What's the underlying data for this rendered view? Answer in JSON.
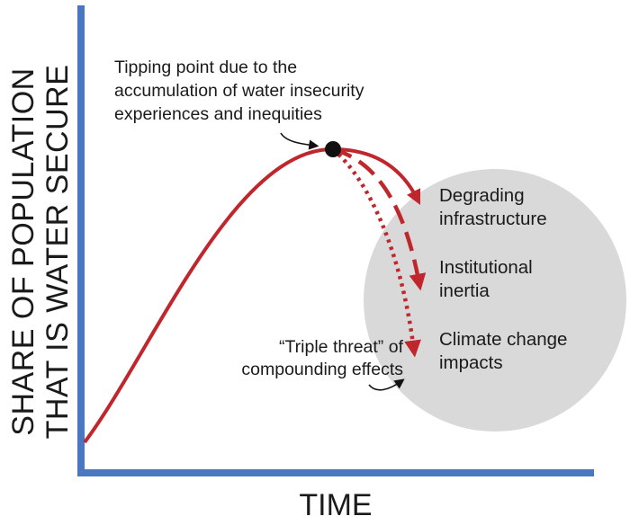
{
  "diagram": {
    "y_axis_label_line1": "SHARE OF POPULATION",
    "y_axis_label_line2": "THAT IS WATER SECURE",
    "x_axis_label": "TIME",
    "tipping_point_annotation": [
      "Tipping point due to the",
      "accumulation of water insecurity",
      "experiences and inequities"
    ],
    "triple_threat_annotation": [
      "“Triple threat” of",
      "compounding effects"
    ],
    "threats": [
      {
        "line1": "Degrading",
        "line2": "infrastructure",
        "line_style": "solid"
      },
      {
        "line1": "Institutional",
        "line2": "inertia",
        "line_style": "dashed"
      },
      {
        "line1": "Climate change",
        "line2": "impacts",
        "line_style": "dotted"
      }
    ],
    "colors": {
      "axis": "#4a77c2",
      "curve": "#c0272d",
      "circle": "#d9d9d9",
      "point": "#111111",
      "text": "#1a1a1a"
    }
  }
}
